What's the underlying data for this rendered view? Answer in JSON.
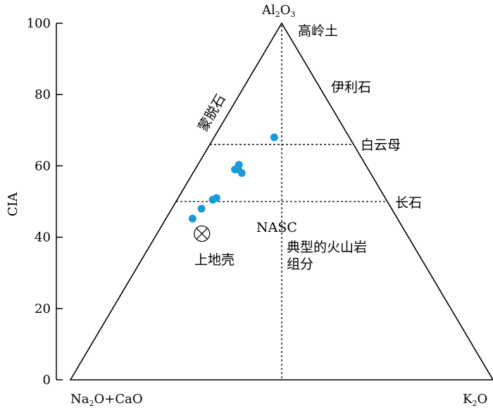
{
  "chart_data": {
    "type": "scatter",
    "vertices": {
      "top": {
        "main": "Al",
        "sub1": "2",
        "mid": "O",
        "sub2": "3"
      },
      "left": {
        "text": "Na",
        "sub": "2",
        "rest": "O+CaO"
      },
      "right": {
        "main": "K",
        "sub": "2",
        "rest": "O"
      }
    },
    "ylabel": "CIA",
    "ylim": [
      0,
      100
    ],
    "yticks": [
      "0",
      "20",
      "40",
      "60",
      "80",
      "100"
    ],
    "ytick_values": [
      0,
      20,
      40,
      60,
      80,
      100
    ],
    "reference_lines": [
      {
        "label": "白云母",
        "cia": 66
      },
      {
        "label": "长石",
        "cia": 50
      }
    ],
    "minerals": {
      "kaolinite": "高岭土",
      "illite": "伊利石",
      "smectite": "蒙脱石"
    },
    "annotations": {
      "nasc": "NASC",
      "igneous_line1": "典型的火山岩",
      "igneous_line2": "组分",
      "upper_crust": "上地壳"
    },
    "upper_crust_point": {
      "k_frac": 0.18,
      "cia": 41
    },
    "point_color": "#1a9ad6",
    "points": [
      {
        "k_frac": 0.445,
        "cia": 68
      },
      {
        "k_frac": 0.23,
        "cia": 59
      },
      {
        "k_frac": 0.245,
        "cia": 60.3
      },
      {
        "k_frac": 0.25,
        "cia": 59
      },
      {
        "k_frac": 0.275,
        "cia": 58
      },
      {
        "k_frac": 0.17,
        "cia": 50.5
      },
      {
        "k_frac": 0.185,
        "cia": 51
      },
      {
        "k_frac": 0.135,
        "cia": 48
      },
      {
        "k_frac": 0.115,
        "cia": 45.2
      }
    ]
  }
}
